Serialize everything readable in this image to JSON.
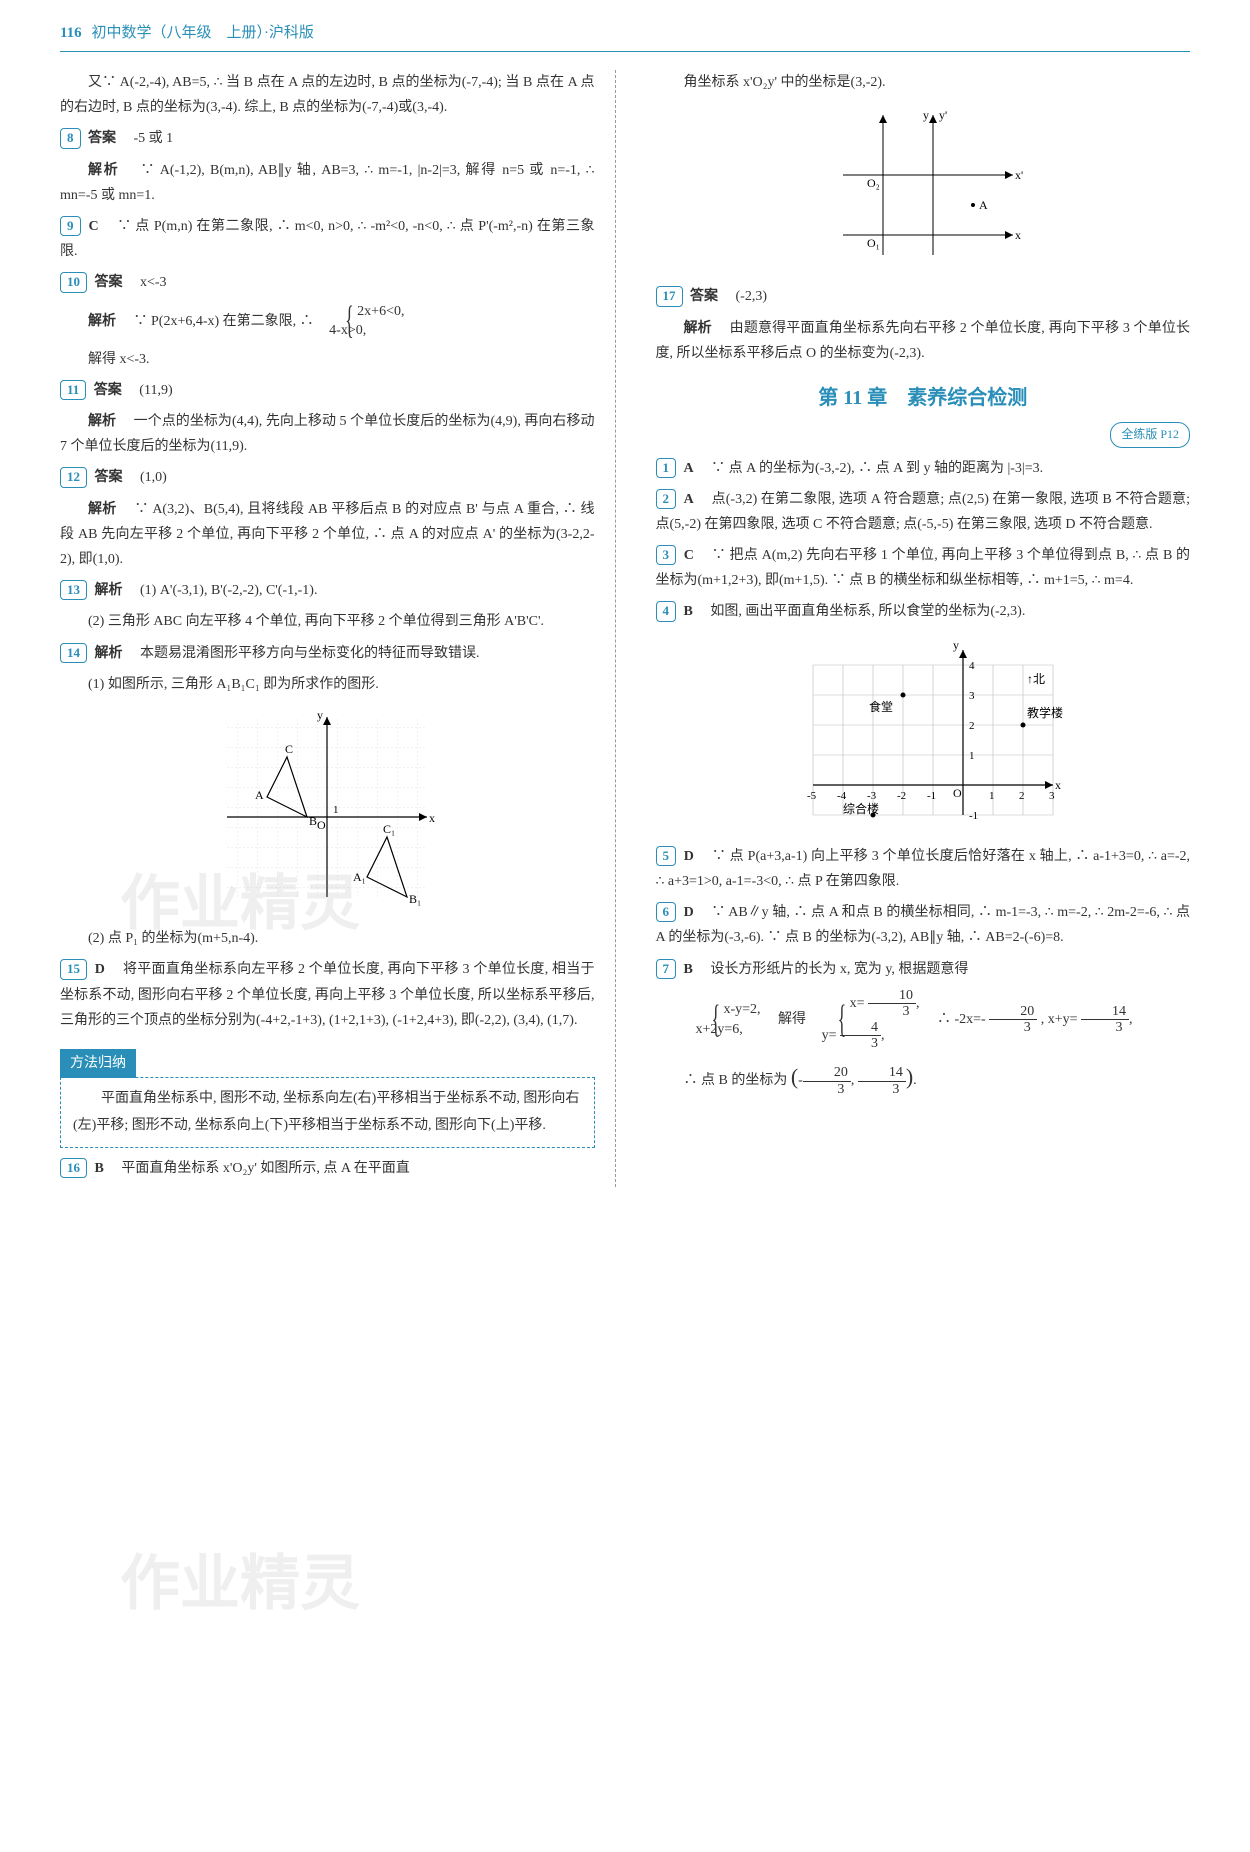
{
  "header": {
    "page": "116",
    "title": "初中数学（八年级　上册）·沪科版"
  },
  "left": {
    "p1": "又∵ A(-2,-4), AB=5, ∴ 当 B 点在 A 点的左边时, B 点的坐标为(-7,-4); 当 B 点在 A 点的右边时, B 点的坐标为(3,-4). 综上, B 点的坐标为(-7,-4)或(3,-4).",
    "q8_num": "8",
    "q8_ans_label": "答案",
    "q8_ans": "　-5 或 1",
    "q8_exp_label": "解析",
    "q8_exp": "　∵ A(-1,2), B(m,n), AB∥y 轴, AB=3, ∴ m=-1, |n-2|=3, 解得 n=5 或 n=-1, ∴ mn=-5 或 mn=1.",
    "q9_num": "9",
    "q9_letter": "C",
    "q9_exp": "　∵ 点 P(m,n) 在第二象限, ∴ m<0, n>0, ∴ -m²<0, -n<0, ∴ 点 P'(-m²,-n) 在第三象限.",
    "q10_num": "10",
    "q10_ans_label": "答案",
    "q10_ans": "　x<-3",
    "q10_exp_label": "解析",
    "q10_exp_pre": "　∵ P(2x+6,4-x) 在第二象限, ∴",
    "q10_brace1": "2x+6<0,",
    "q10_brace2": "4-x>0,",
    "q10_exp_post": "解得 x<-3.",
    "q11_num": "11",
    "q11_ans_label": "答案",
    "q11_ans": "　(11,9)",
    "q11_exp_label": "解析",
    "q11_exp": "　一个点的坐标为(4,4), 先向上移动 5 个单位长度后的坐标为(4,9), 再向右移动 7 个单位长度后的坐标为(11,9).",
    "q12_num": "12",
    "q12_ans_label": "答案",
    "q12_ans": "　(1,0)",
    "q12_exp_label": "解析",
    "q12_exp": "　∵ A(3,2)、B(5,4), 且将线段 AB 平移后点 B 的对应点 B' 与点 A 重合, ∴ 线段 AB 先向左平移 2 个单位, 再向下平移 2 个单位, ∴ 点 A 的对应点 A' 的坐标为(3-2,2-2), 即(1,0).",
    "q13_num": "13",
    "q13_exp_label": "解析",
    "q13_exp1": "　(1) A'(-3,1), B'(-2,-2), C'(-1,-1).",
    "q13_exp2": "(2) 三角形 ABC 向左平移 4 个单位, 再向下平移 2 个单位得到三角形 A'B'C'.",
    "q14_num": "14",
    "q14_exp_label": "解析",
    "q14_exp1": "　本题易混淆图形平移方向与坐标变化的特征而导致错误.",
    "q14_exp2": "(1) 如图所示, 三角形 A₁B₁C₁ 即为所求作的图形.",
    "q14_exp3": "(2) 点 P₁ 的坐标为(m+5,n-4).",
    "q15_num": "15",
    "q15_letter": "D",
    "q15_exp": "　将平面直角坐标系向左平移 2 个单位长度, 再向下平移 3 个单位长度, 相当于坐标系不动, 图形向右平移 2 个单位长度, 再向上平移 3 个单位长度, 所以坐标系平移后, 三角形的三个顶点的坐标分别为(-4+2,-1+3), (1+2,1+3), (-1+2,4+3), 即(-2,2), (3,4), (1,7).",
    "method_title": "方法归纳",
    "method": "平面直角坐标系中, 图形不动, 坐标系向左(右)平移相当于坐标系不动, 图形向右(左)平移; 图形不动, 坐标系向上(下)平移相当于坐标系不动, 图形向下(上)平移.",
    "q16_num": "16",
    "q16_letter": "B",
    "q16_exp": "　平面直角坐标系 x'O₂y' 如图所示, 点 A 在平面直"
  },
  "right": {
    "p1": "角坐标系 x'O₂y' 中的坐标是(3,-2).",
    "q17_num": "17",
    "q17_ans_label": "答案",
    "q17_ans": "　(-2,3)",
    "q17_exp_label": "解析",
    "q17_exp": "　由题意得平面直角坐标系先向右平移 2 个单位长度, 再向下平移 3 个单位长度, 所以坐标系平移后点 O 的坐标变为(-2,3).",
    "chapter": "第 11 章　素养综合检测",
    "pill": "全练版 P12",
    "q1_num": "1",
    "q1_letter": "A",
    "q1_exp": "　∵ 点 A 的坐标为(-3,-2), ∴ 点 A 到 y 轴的距离为 |-3|=3.",
    "q2_num": "2",
    "q2_letter": "A",
    "q2_exp": "　点(-3,2) 在第二象限, 选项 A 符合题意; 点(2,5) 在第一象限, 选项 B 不符合题意; 点(5,-2) 在第四象限, 选项 C 不符合题意; 点(-5,-5) 在第三象限, 选项 D 不符合题意.",
    "q3_num": "3",
    "q3_letter": "C",
    "q3_exp": "　∵ 把点 A(m,2) 先向右平移 1 个单位, 再向上平移 3 个单位得到点 B, ∴ 点 B 的坐标为(m+1,2+3), 即(m+1,5). ∵ 点 B 的横坐标和纵坐标相等, ∴ m+1=5, ∴ m=4.",
    "q4_num": "4",
    "q4_letter": "B",
    "q4_exp": "　如图, 画出平面直角坐标系, 所以食堂的坐标为(-2,3).",
    "fig2_labels": {
      "north": "↑北",
      "canteen": "食堂",
      "building": "教学楼",
      "complex": "综合楼"
    },
    "q5_num": "5",
    "q5_letter": "D",
    "q5_exp": "　∵ 点 P(a+3,a-1) 向上平移 3 个单位长度后恰好落在 x 轴上, ∴ a-1+3=0, ∴ a=-2, ∴ a+3=1>0, a-1=-3<0, ∴ 点 P 在第四象限.",
    "q6_num": "6",
    "q6_letter": "D",
    "q6_exp": "　∵ AB∥y 轴, ∴ 点 A 和点 B 的横坐标相同, ∴ m-1=-3, ∴ m=-2, ∴ 2m-2=-6, ∴ 点 A 的坐标为(-3,-6). ∵ 点 B 的坐标为(-3,2), AB∥y 轴, ∴ AB=2-(-6)=8.",
    "q7_num": "7",
    "q7_letter": "B",
    "q7_exp_pre": "　设长方形纸片的长为 x, 宽为 y, 根据题意得",
    "q7_brace1a": "x-y=2,",
    "q7_brace1b": "x+2y=6,",
    "q7_mid": "　解得",
    "q7_brace2a_pre": "x=",
    "q7_brace2a_num": "10",
    "q7_brace2a_den": "3",
    "q7_brace2b_pre": "y=",
    "q7_brace2b_num": "4",
    "q7_brace2b_den": "3",
    "q7_post1_pre": "　∴ -2x=-",
    "q7_post1_n": "20",
    "q7_post1_d": "3",
    "q7_post1_mid": ", x+y=",
    "q7_post1_n2": "14",
    "q7_post1_d2": "3",
    "q7_final_pre": "∴ 点 B 的坐标为",
    "q7_final_a_n": "20",
    "q7_final_a_d": "3",
    "q7_final_b_n": "14",
    "q7_final_b_d": "3"
  },
  "fig14": {
    "labels": {
      "A": "A",
      "B": "B",
      "C": "C",
      "A1": "A₁",
      "B1": "B₁",
      "C1": "C₁",
      "O": "O",
      "x": "x",
      "y": "y",
      "one": "1"
    }
  },
  "fig_right1": {
    "labels": {
      "O1": "O₁",
      "O2": "O₂",
      "A": "A",
      "x": "x",
      "xp": "x'",
      "y": "y",
      "yp": "y'"
    }
  },
  "fig_right2_ticks": {
    "xneg": [
      "-5",
      "-4",
      "-3",
      "-2",
      "-1"
    ],
    "xpos": [
      "1",
      "2",
      "3"
    ],
    "ypos": [
      "1",
      "2",
      "3",
      "4"
    ],
    "yneg": "-1",
    "O": "O",
    "x": "x",
    "y": "y"
  },
  "watermark": "作业精灵"
}
